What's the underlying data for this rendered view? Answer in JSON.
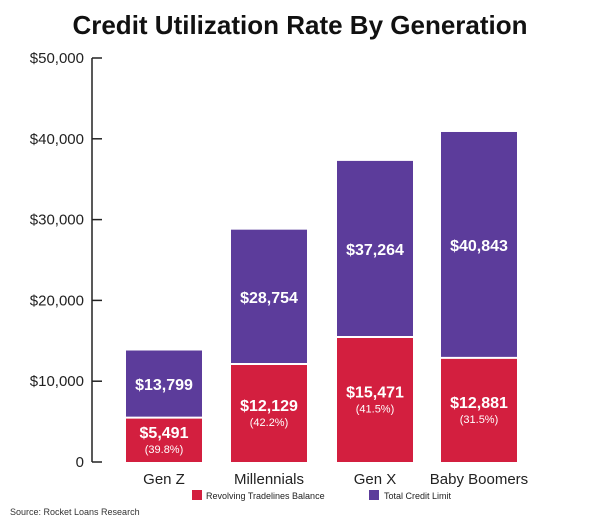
{
  "chart_data": {
    "type": "bar",
    "stacked": true,
    "title": "Credit Utilization Rate By Generation",
    "categories": [
      "Gen Z",
      "Millennials",
      "Gen X",
      "Baby Boomers"
    ],
    "series": [
      {
        "name": "Revolving Tradelines Balance",
        "color": "#d31f3f",
        "values": [
          5491,
          12129,
          15471,
          12881
        ],
        "labels": [
          "$5,491",
          "$12,129",
          "$15,471",
          "$12,881"
        ],
        "sublabels": [
          "(39.8%)",
          "(42.2%)",
          "(41.5%)",
          "(31.5%)"
        ]
      },
      {
        "name": "Total Credit Limit",
        "color": "#5c3c9b",
        "values": [
          8308,
          16625,
          21793,
          27962
        ],
        "labels": [
          "$13,799",
          "$28,754",
          "$37,264",
          "$40,843"
        ]
      }
    ],
    "yticks": [
      0,
      10000,
      20000,
      30000,
      40000,
      50000
    ],
    "ytick_labels": [
      "0",
      "$10,000",
      "$20,000",
      "$30,000",
      "$40,000",
      "$50,000"
    ],
    "ylim": [
      0,
      50000
    ],
    "grid": false,
    "legend_position": "bottom",
    "source": "Source: Rocket Loans Research"
  }
}
